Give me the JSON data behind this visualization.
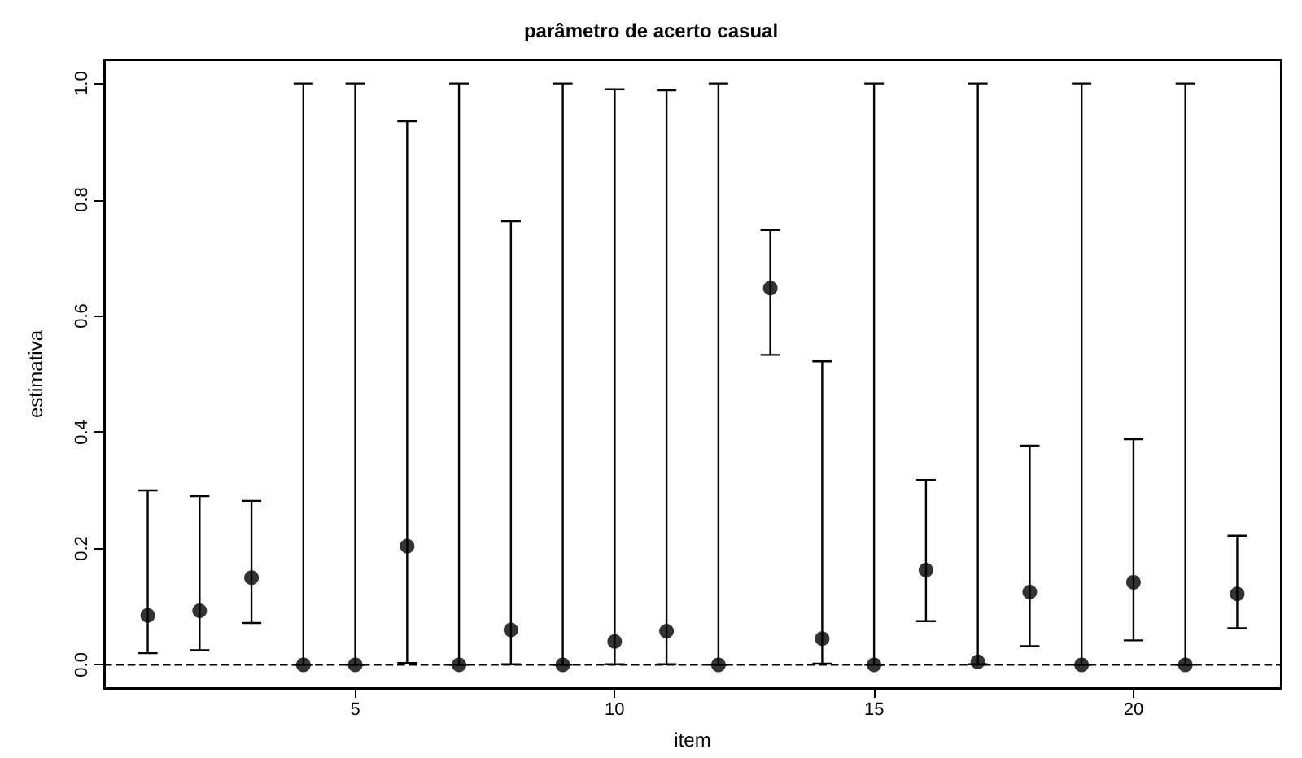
{
  "chart_data": {
    "type": "scatter",
    "title": "parâmetro de acerto casual",
    "xlabel": "item",
    "ylabel": "estimativa",
    "x": [
      1,
      2,
      3,
      4,
      5,
      6,
      7,
      8,
      9,
      10,
      11,
      12,
      13,
      14,
      15,
      16,
      17,
      18,
      19,
      20,
      21,
      22
    ],
    "values": [
      0.085,
      0.093,
      0.15,
      0,
      0,
      0.204,
      0,
      0.06,
      0,
      0.04,
      0.058,
      0,
      0.648,
      0.045,
      0,
      0.163,
      0.005,
      0.125,
      0,
      0.142,
      0,
      0.122
    ],
    "errors": [
      [
        0.02,
        0.3
      ],
      [
        0.025,
        0.29
      ],
      [
        0.072,
        0.282
      ],
      [
        0,
        1
      ],
      [
        0,
        1
      ],
      [
        0.003,
        0.935
      ],
      [
        0,
        1
      ],
      [
        0.001,
        0.763
      ],
      [
        0,
        1
      ],
      [
        0.001,
        0.99
      ],
      [
        0.001,
        0.988
      ],
      [
        0,
        1
      ],
      [
        0.533,
        0.748
      ],
      [
        0.002,
        0.522
      ],
      [
        0,
        1
      ],
      [
        0.075,
        0.318
      ],
      [
        0.001,
        1
      ],
      [
        0.032,
        0.377
      ],
      [
        0,
        1
      ],
      [
        0.042,
        0.388
      ],
      [
        0,
        1
      ],
      [
        0.063,
        0.222
      ]
    ],
    "color": "#000000",
    "marker": "circle",
    "xlim": [
      0.16,
      22.84
    ],
    "xticks": [
      5,
      10,
      15,
      20
    ],
    "ylim": [
      -0.04,
      1.04
    ],
    "yticks": [
      {
        "value": 0,
        "label": "0.0"
      },
      0.2,
      0.4,
      0.6,
      0.8,
      {
        "value": 1,
        "label": "1.0"
      }
    ],
    "ref_lines": [
      {
        "axis": "y",
        "value": 0,
        "line_style": "dashed",
        "color": "#000000"
      }
    ],
    "grid": false
  }
}
